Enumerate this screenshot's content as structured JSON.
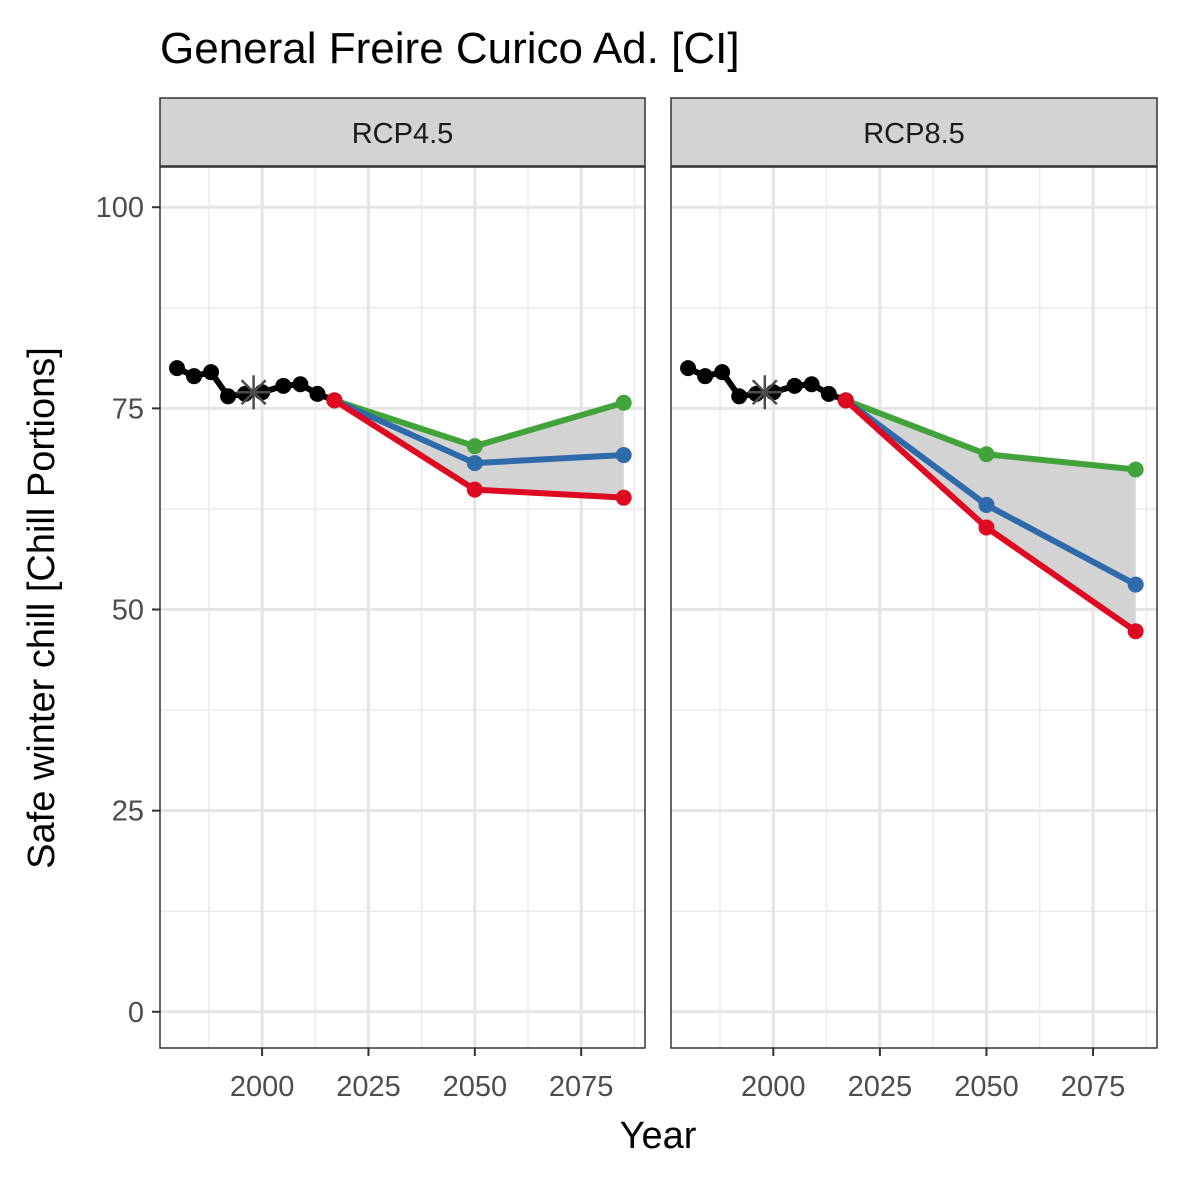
{
  "chart_data": {
    "type": "line",
    "title": "General Freire Curico Ad. [CI]",
    "xlabel": "Year",
    "ylabel": "Safe winter chill [Chill Portions]",
    "xlim": [
      1976,
      2090
    ],
    "ylim": [
      -4.5,
      105
    ],
    "x_ticks": [
      2000,
      2025,
      2050,
      2075
    ],
    "y_ticks": [
      0,
      25,
      50,
      75,
      100
    ],
    "grid": true,
    "colors": {
      "historic": "#000000",
      "reference": "#4d4d4d",
      "optimistic": "#41a33a",
      "intermediate": "#2f6aaa",
      "pessimistic": "#dd0a21",
      "band": "#d3d3d3"
    },
    "panels": [
      {
        "strip": "RCP4.5",
        "historic": {
          "x": [
            1980,
            1984,
            1988,
            1992,
            1996,
            2000,
            2005,
            2009,
            2013,
            2017
          ],
          "y": [
            80,
            79,
            79.5,
            76.5,
            76.8,
            77,
            77.8,
            78,
            76.8,
            76
          ]
        },
        "reference_point": {
          "x": 1998,
          "y": 77
        },
        "scenarios": {
          "x": [
            2017,
            2050,
            2085
          ],
          "optimistic": [
            76,
            70.3,
            75.7
          ],
          "intermediate": [
            76,
            68.2,
            69.2
          ],
          "pessimistic": [
            76,
            64.9,
            63.9
          ]
        }
      },
      {
        "strip": "RCP8.5",
        "historic": {
          "x": [
            1980,
            1984,
            1988,
            1992,
            1996,
            2000,
            2005,
            2009,
            2013,
            2017
          ],
          "y": [
            80,
            79,
            79.5,
            76.5,
            76.8,
            77,
            77.8,
            78,
            76.8,
            76
          ]
        },
        "reference_point": {
          "x": 1998,
          "y": 77
        },
        "scenarios": {
          "x": [
            2017,
            2050,
            2085
          ],
          "optimistic": [
            76,
            69.3,
            67.4
          ],
          "intermediate": [
            76,
            63,
            53.1
          ],
          "pessimistic": [
            76,
            60.2,
            47.3
          ]
        }
      }
    ]
  }
}
